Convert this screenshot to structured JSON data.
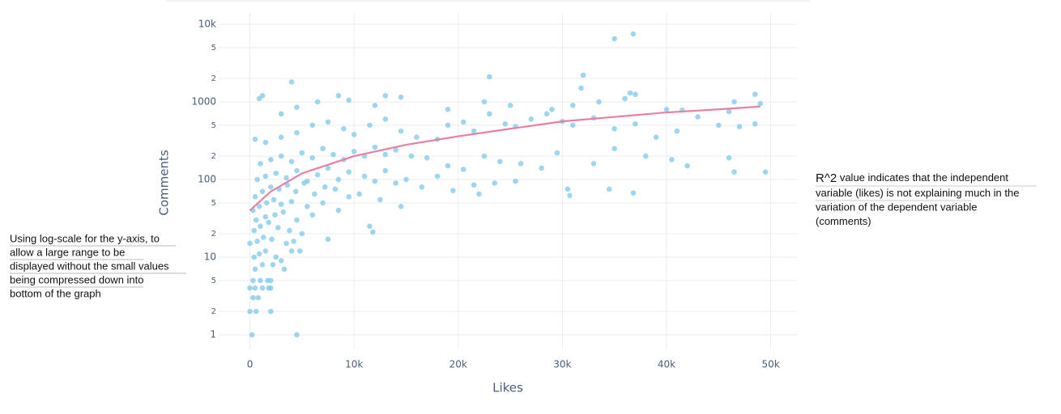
{
  "chart_data": {
    "type": "scatter",
    "x_label": "Likes",
    "y_label": "Comments",
    "xlim": [
      -3000,
      52600
    ],
    "ylim": [
      0.65,
      14300
    ],
    "y_scale": "log",
    "grid": true,
    "xticks": [
      0,
      {
        "value": 10000,
        "label": "10k"
      },
      {
        "value": 20000,
        "label": "20k"
      },
      {
        "value": 30000,
        "label": "30k"
      },
      {
        "value": 40000,
        "label": "40k"
      },
      {
        "value": 50000,
        "label": "50k"
      }
    ],
    "yticks": [
      1,
      2,
      5,
      10,
      {
        "value": 20,
        "label": "2"
      },
      {
        "value": 50,
        "label": "5"
      },
      100,
      {
        "value": 200,
        "label": "2"
      },
      {
        "value": 500,
        "label": "5"
      },
      1000,
      {
        "value": 2000,
        "label": "2"
      },
      {
        "value": 5000,
        "label": "5"
      },
      {
        "value": 10000,
        "label": "10k"
      }
    ],
    "series": [
      {
        "mode": "markers",
        "color": "#7ec8ea",
        "x": [
          200,
          4500,
          0,
          600,
          2000,
          300,
          800,
          0,
          500,
          1200,
          1800,
          2000,
          300,
          1000,
          1700,
          2000,
          500,
          1200,
          2200,
          400,
          900,
          1500,
          2500,
          3000,
          3300,
          4000,
          4800,
          0,
          700,
          1300,
          2100,
          3500,
          4200,
          7500,
          400,
          1000,
          1800,
          2700,
          3800,
          5000,
          600,
          1500,
          2400,
          3200,
          4500,
          6000,
          300,
          900,
          1600,
          2300,
          3000,
          4000,
          5500,
          7000,
          8500,
          11500,
          11800,
          500,
          1200,
          2000,
          2800,
          3600,
          4400,
          5200,
          6200,
          7200,
          8200,
          9500,
          10500,
          12500,
          14500,
          700,
          1500,
          2500,
          3500,
          4500,
          5500,
          6500,
          7500,
          8500,
          9500,
          11000,
          12000,
          13000,
          14000,
          15000,
          16500,
          18000,
          19500,
          21500,
          22000,
          23500,
          25500,
          30500,
          30700,
          34500,
          36800,
          1000,
          2000,
          3000,
          4000,
          5000,
          6000,
          7000,
          8000,
          9000,
          10000,
          11000,
          12000,
          13000,
          14000,
          15500,
          17000,
          19000,
          20500,
          22500,
          24000,
          26000,
          28000,
          29500,
          33000,
          35000,
          38000,
          40500,
          42000,
          46000,
          46500,
          49500,
          500,
          1500,
          3000,
          4500,
          6000,
          7500,
          9000,
          10000,
          11500,
          13000,
          14500,
          16000,
          18000,
          19000,
          20500,
          21500,
          23000,
          24500,
          25500,
          27000,
          28500,
          30000,
          31000,
          33000,
          35000,
          37000,
          39000,
          41000,
          43000,
          45000,
          47000,
          48500,
          900,
          1200,
          3000,
          4500,
          6500,
          9500,
          12000,
          13000,
          14500,
          19000,
          22500,
          25000,
          29000,
          31000,
          33500,
          36000,
          37000,
          40000,
          41500,
          46500,
          48500,
          49000,
          4000,
          8500,
          23000,
          32000,
          31800,
          36500,
          35000,
          36800,
          46000
        ],
        "values": [
          1,
          1,
          2,
          2,
          2,
          3,
          3,
          4,
          4,
          4,
          4,
          4,
          5,
          5,
          5,
          5,
          7,
          8,
          8,
          10,
          11,
          12,
          10,
          9,
          7,
          12,
          12,
          15,
          16,
          18,
          17,
          15,
          16,
          17,
          22,
          25,
          28,
          24,
          22,
          20,
          30,
          33,
          35,
          38,
          30,
          35,
          40,
          45,
          50,
          55,
          48,
          52,
          45,
          50,
          40,
          25,
          21,
          60,
          70,
          80,
          75,
          85,
          70,
          90,
          65,
          80,
          75,
          60,
          65,
          55,
          45,
          100,
          110,
          120,
          105,
          130,
          95,
          115,
          140,
          100,
          125,
          110,
          95,
          130,
          90,
          100,
          80,
          110,
          72,
          85,
          65,
          90,
          95,
          75,
          62,
          75,
          67,
          160,
          180,
          200,
          170,
          220,
          190,
          250,
          210,
          180,
          230,
          200,
          260,
          210,
          240,
          200,
          190,
          150,
          135,
          200,
          170,
          160,
          140,
          220,
          160,
          250,
          200,
          180,
          150,
          190,
          125,
          125,
          330,
          300,
          350,
          400,
          500,
          550,
          450,
          380,
          500,
          600,
          420,
          350,
          330,
          500,
          550,
          420,
          700,
          520,
          480,
          600,
          700,
          560,
          500,
          620,
          450,
          520,
          350,
          420,
          640,
          500,
          480,
          520,
          1100,
          1200,
          700,
          850,
          1000,
          1050,
          900,
          1200,
          1150,
          800,
          1000,
          900,
          800,
          900,
          1000,
          1100,
          1250,
          800,
          780,
          1000,
          1250,
          950,
          1800,
          1200,
          2100,
          2200,
          1500,
          1300,
          6500,
          7500,
          750
        ]
      },
      {
        "mode": "lines",
        "color": "#e8809f",
        "x": [
          0,
          2000,
          5000,
          10000,
          15000,
          20000,
          25000,
          30000,
          35000,
          40000,
          45000,
          49000
        ],
        "values": [
          40,
          70,
          120,
          200,
          280,
          360,
          450,
          560,
          640,
          730,
          800,
          870
        ]
      }
    ]
  },
  "annotations": {
    "left": [
      "Using log-scale for the y-axis, to",
      "allow a large range to be",
      "displayed without the small values",
      "being compressed down into",
      "bottom of the graph"
    ],
    "right_heading": "R^2",
    "right": [
      " value indicates that the independent",
      "variable (likes) is not explaining much in the",
      "variation of the dependent variable",
      "(comments)"
    ]
  }
}
